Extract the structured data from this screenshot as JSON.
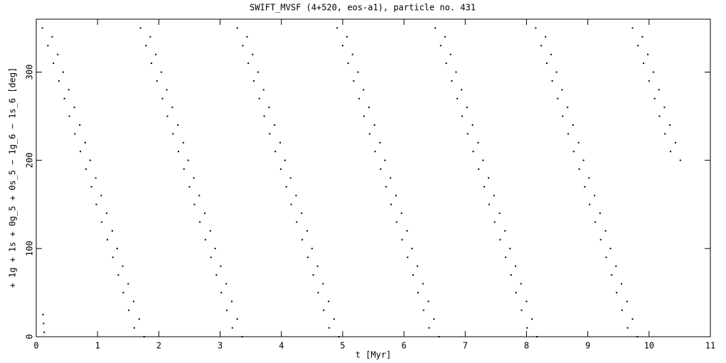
{
  "chart_data": {
    "type": "scatter",
    "title": "SWIFT_MVSF (4+520, eos-a1), particle no. 431",
    "xlabel": "t [Myr]",
    "ylabel": "+ 1g + 1s + 0g_5 + 0s_5 − 1g_6 − 1s_6 [deg]",
    "color": "#000000",
    "xlim": [
      0,
      11
    ],
    "ylim": [
      0,
      360
    ],
    "xticks": [
      0,
      1,
      2,
      3,
      4,
      5,
      6,
      7,
      8,
      9,
      10,
      11
    ],
    "yticks": [
      0,
      100,
      200,
      300
    ],
    "x": [
      0.1,
      0.26,
      0.19,
      0.35,
      0.28,
      0.44,
      0.37,
      0.53,
      0.46,
      0.62,
      0.54,
      0.71,
      0.63,
      0.8,
      0.72,
      0.88,
      0.81,
      0.97,
      0.9,
      1.06,
      0.98,
      1.15,
      1.07,
      1.24,
      1.16,
      1.32,
      1.25,
      1.41,
      1.34,
      1.5,
      1.42,
      1.59,
      1.51,
      1.68,
      1.6,
      1.76,
      1.7,
      1.86,
      1.79,
      1.95,
      1.88,
      2.04,
      1.97,
      2.13,
      2.06,
      2.22,
      2.14,
      2.31,
      2.23,
      2.4,
      2.32,
      2.48,
      2.41,
      2.57,
      2.5,
      2.66,
      2.58,
      2.75,
      2.67,
      2.84,
      2.76,
      2.92,
      2.85,
      3.01,
      2.94,
      3.1,
      3.02,
      3.19,
      3.11,
      3.28,
      3.2,
      3.36,
      3.28,
      3.44,
      3.37,
      3.53,
      3.46,
      3.62,
      3.55,
      3.71,
      3.64,
      3.8,
      3.72,
      3.89,
      3.81,
      3.98,
      3.9,
      4.06,
      3.99,
      4.15,
      4.08,
      4.24,
      4.16,
      4.33,
      4.25,
      4.42,
      4.34,
      4.5,
      4.43,
      4.59,
      4.52,
      4.68,
      4.6,
      4.77,
      4.69,
      4.86,
      4.78,
      4.94,
      4.91,
      5.07,
      5.0,
      5.16,
      5.09,
      5.25,
      5.18,
      5.34,
      5.27,
      5.43,
      5.35,
      5.52,
      5.44,
      5.61,
      5.53,
      5.69,
      5.62,
      5.78,
      5.71,
      5.87,
      5.79,
      5.96,
      5.88,
      6.05,
      5.97,
      6.13,
      6.06,
      6.22,
      6.15,
      6.31,
      6.23,
      6.4,
      6.32,
      6.49,
      6.41,
      6.57,
      6.51,
      6.67,
      6.6,
      6.76,
      6.69,
      6.85,
      6.78,
      6.94,
      6.87,
      7.03,
      6.95,
      7.12,
      7.04,
      7.21,
      7.13,
      7.29,
      7.22,
      7.38,
      7.31,
      7.47,
      7.39,
      7.56,
      7.48,
      7.65,
      7.57,
      7.73,
      7.66,
      7.82,
      7.75,
      7.91,
      7.83,
      8.0,
      7.92,
      8.09,
      8.01,
      8.17,
      8.15,
      8.31,
      8.24,
      8.4,
      8.33,
      8.49,
      8.42,
      8.58,
      8.51,
      8.67,
      8.59,
      8.76,
      8.68,
      8.85,
      8.77,
      8.93,
      8.86,
      9.02,
      8.95,
      9.11,
      9.03,
      9.2,
      9.12,
      9.29,
      9.21,
      9.37,
      9.3,
      9.46,
      9.39,
      9.55,
      9.47,
      9.64,
      9.56,
      9.73,
      9.65,
      9.81,
      9.73,
      9.89,
      9.82,
      9.98,
      9.91,
      10.07,
      10.0,
      10.16,
      10.09,
      10.25,
      10.17,
      10.34,
      10.26,
      10.43,
      10.35,
      10.51,
      0.11,
      0.12,
      0.13
    ],
    "y": [
      350,
      340,
      330,
      320,
      310,
      300,
      290,
      280,
      270,
      260,
      250,
      240,
      230,
      220,
      210,
      200,
      190,
      180,
      170,
      160,
      150,
      140,
      130,
      120,
      110,
      100,
      90,
      80,
      70,
      60,
      50,
      40,
      30,
      20,
      10,
      0,
      350,
      340,
      330,
      320,
      310,
      300,
      290,
      280,
      270,
      260,
      250,
      240,
      230,
      220,
      210,
      200,
      190,
      180,
      170,
      160,
      150,
      140,
      130,
      120,
      110,
      100,
      90,
      80,
      70,
      60,
      50,
      40,
      30,
      20,
      10,
      0,
      350,
      340,
      330,
      320,
      310,
      300,
      290,
      280,
      270,
      260,
      250,
      240,
      230,
      220,
      210,
      200,
      190,
      180,
      170,
      160,
      150,
      140,
      130,
      120,
      110,
      100,
      90,
      80,
      70,
      60,
      50,
      40,
      30,
      20,
      10,
      0,
      350,
      340,
      330,
      320,
      310,
      300,
      290,
      280,
      270,
      260,
      250,
      240,
      230,
      220,
      210,
      200,
      190,
      180,
      170,
      160,
      150,
      140,
      130,
      120,
      110,
      100,
      90,
      80,
      70,
      60,
      50,
      40,
      30,
      20,
      10,
      0,
      350,
      340,
      330,
      320,
      310,
      300,
      290,
      280,
      270,
      260,
      250,
      240,
      230,
      220,
      210,
      200,
      190,
      180,
      170,
      160,
      150,
      140,
      130,
      120,
      110,
      100,
      90,
      80,
      70,
      60,
      50,
      40,
      30,
      20,
      10,
      0,
      350,
      340,
      330,
      320,
      310,
      300,
      290,
      280,
      270,
      260,
      250,
      240,
      230,
      220,
      210,
      200,
      190,
      180,
      170,
      160,
      150,
      140,
      130,
      120,
      110,
      100,
      90,
      80,
      70,
      60,
      50,
      40,
      30,
      20,
      10,
      0,
      350,
      340,
      330,
      320,
      310,
      300,
      290,
      280,
      270,
      260,
      250,
      240,
      230,
      220,
      210,
      200,
      25,
      15,
      5
    ]
  }
}
